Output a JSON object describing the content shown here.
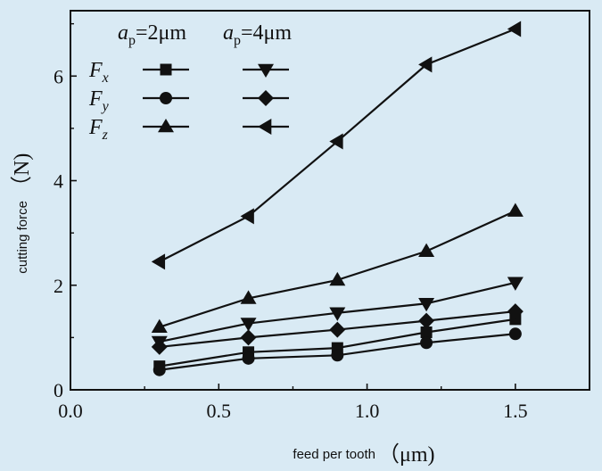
{
  "chart_data": {
    "type": "line",
    "x": [
      0.3,
      0.6,
      0.9,
      1.2,
      1.5
    ],
    "xlim": [
      0.0,
      1.75
    ],
    "ylim": [
      0,
      7.25
    ],
    "xticks": [
      "0.0",
      "0.5",
      "1.0",
      "1.5"
    ],
    "yticks": [
      "0",
      "2",
      "4",
      "6"
    ],
    "xlabel": "feed per tooth",
    "xlabel_unit": "（μm)",
    "ylabel": "cutting force",
    "ylabel_unit": "（N)",
    "grid": false,
    "legend_position": "top-left",
    "legend": {
      "col1_prefix": "a",
      "col1_sub": "p",
      "col1_value": "=2μm",
      "col2_prefix": "a",
      "col2_sub": "p",
      "col2_value": "=4μm",
      "rows": [
        {
          "label": "F",
          "sub": "x"
        },
        {
          "label": "F",
          "sub": "y"
        },
        {
          "label": "F",
          "sub": "z"
        }
      ]
    },
    "series": [
      {
        "group": "ap=2μm",
        "component": "Fx",
        "marker": "square",
        "values": [
          0.45,
          0.72,
          0.8,
          1.1,
          1.35
        ]
      },
      {
        "group": "ap=2μm",
        "component": "Fy",
        "marker": "circle",
        "values": [
          0.38,
          0.6,
          0.66,
          0.9,
          1.07
        ]
      },
      {
        "group": "ap=2μm",
        "component": "Fz",
        "marker": "triangle-up",
        "values": [
          1.2,
          1.75,
          2.1,
          2.65,
          3.42
        ]
      },
      {
        "group": "ap=4μm",
        "component": "Fx",
        "marker": "triangle-down",
        "values": [
          0.92,
          1.27,
          1.47,
          1.65,
          2.05
        ]
      },
      {
        "group": "ap=4μm",
        "component": "Fy",
        "marker": "diamond",
        "values": [
          0.82,
          1.0,
          1.15,
          1.32,
          1.5
        ]
      },
      {
        "group": "ap=4μm",
        "component": "Fz",
        "marker": "triangle-left",
        "values": [
          2.45,
          3.32,
          4.75,
          6.22,
          6.9
        ]
      }
    ],
    "colors": {
      "background": "#d9eaf4",
      "ink": "#111111"
    }
  }
}
